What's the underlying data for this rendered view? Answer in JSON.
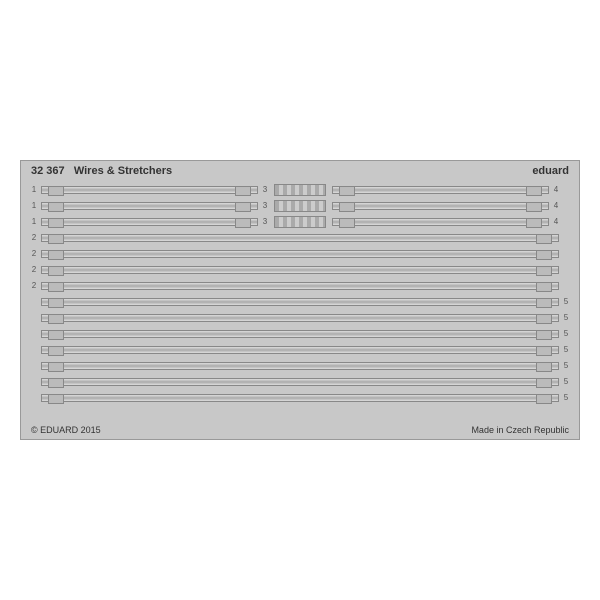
{
  "header": {
    "product_code": "32 367",
    "product_name": "Wires & Stretchers",
    "brand": "eduard"
  },
  "footer": {
    "copyright": "© EDUARD 2015",
    "origin": "Made in Czech Republic"
  },
  "colors": {
    "fret_bg": "#c8c8c8",
    "page_bg": "#ffffff",
    "text": "#333333",
    "wire_light": "#dddddd",
    "wire_dark": "#aaaaaa",
    "border": "#888888"
  },
  "rows": [
    {
      "type": "split",
      "left_num": "1",
      "center_num": "3",
      "right_num": "4"
    },
    {
      "type": "split",
      "left_num": "1",
      "center_num": "3",
      "right_num": "4"
    },
    {
      "type": "split",
      "left_num": "1",
      "center_num": "3",
      "right_num": "4"
    },
    {
      "type": "full",
      "left_num": "2",
      "right_num": ""
    },
    {
      "type": "full",
      "left_num": "2",
      "right_num": ""
    },
    {
      "type": "full",
      "left_num": "2",
      "right_num": ""
    },
    {
      "type": "full",
      "left_num": "2",
      "right_num": ""
    },
    {
      "type": "full",
      "left_num": "",
      "right_num": "5"
    },
    {
      "type": "full",
      "left_num": "",
      "right_num": "5"
    },
    {
      "type": "full",
      "left_num": "",
      "right_num": "5"
    },
    {
      "type": "full",
      "left_num": "",
      "right_num": "5"
    },
    {
      "type": "full",
      "left_num": "",
      "right_num": "5"
    },
    {
      "type": "full",
      "left_num": "",
      "right_num": "5"
    },
    {
      "type": "full",
      "left_num": "",
      "right_num": "5"
    }
  ]
}
